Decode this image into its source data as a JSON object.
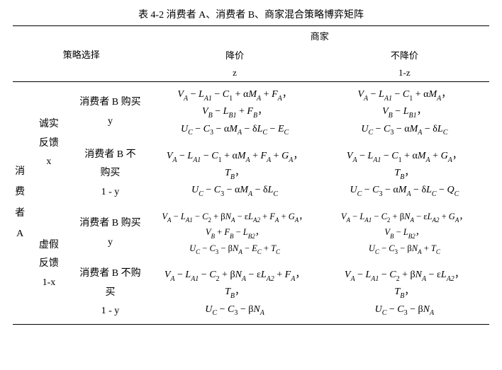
{
  "title": "表 4-2    消费者 A、消费者 B、商家混合策略博弈矩阵",
  "head": {
    "strategy": "策略选择",
    "merchant": "商家",
    "m0": "降价",
    "m0v": "z",
    "m1": "不降价",
    "m1v": "1-z"
  },
  "left": {
    "consumerA": [
      "消",
      "费",
      "者",
      "A"
    ],
    "a0": "诚实",
    "a1": "反馈",
    "a0v": "x",
    "b0": "虚假",
    "b1": "反馈",
    "b0v": "1-x"
  },
  "bcol": {
    "buy": "消费者 B 购买",
    "buy_y": "y",
    "nobuy1a": "消费者 B 不",
    "nobuy1b": "购买",
    "nobuy2a": "消费者 B 不购",
    "nobuy2b": "买",
    "ny": "1 - y"
  },
  "sym": {
    "V": "V",
    "L": "L",
    "C": "C",
    "M": "M",
    "N": "N",
    "F": "F",
    "G": "G",
    "T": "T",
    "U": "U",
    "E": "E",
    "Q": "Q",
    "alpha": "α",
    "beta": "β",
    "delta": "δ",
    "eps": "ε",
    "A": "A",
    "B": "B",
    "Cs": "C",
    "A1": "A1",
    "A2": "A2",
    "B1": "B1",
    "B2": "B2",
    "n1": "1",
    "n2": "2",
    "n3": "3",
    "plus": " + ",
    "minus": " − ",
    "comma": "，"
  }
}
